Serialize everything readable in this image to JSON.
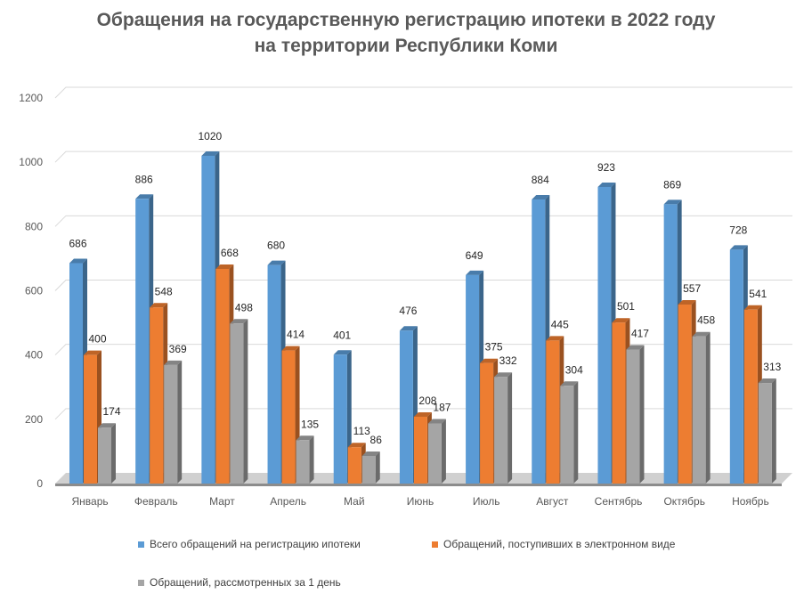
{
  "title": {
    "line1": "Обращения на государственную регистрацию ипотеки в 2022 году",
    "line2": "на территории Республики Коми"
  },
  "chart_data": {
    "type": "bar",
    "title": "Обращения на государственную регистрацию ипотеки в 2022 году на территории Республики Коми",
    "categories": [
      "Январь",
      "Февраль",
      "Март",
      "Апрель",
      "Май",
      "Июнь",
      "Июль",
      "Август",
      "Сентябрь",
      "Октябрь",
      "Ноябрь"
    ],
    "series": [
      {
        "name": "Всего обращений на регистрацию ипотеки",
        "color": "#5B9BD5",
        "values": [
          686,
          886,
          1020,
          680,
          401,
          476,
          649,
          884,
          923,
          869,
          728
        ]
      },
      {
        "name": "Обращений, поступивших в электронном виде",
        "color": "#ED7D31",
        "values": [
          400,
          548,
          668,
          414,
          113,
          208,
          375,
          445,
          501,
          557,
          541
        ]
      },
      {
        "name": "Обращений, рассмотренных за 1 день",
        "color": "#A5A5A5",
        "values": [
          174,
          369,
          498,
          135,
          86,
          187,
          332,
          304,
          417,
          458,
          313
        ]
      }
    ],
    "yticks": [
      "0",
      "200",
      "400",
      "600",
      "800",
      "1000",
      "1200"
    ],
    "ylim": [
      0,
      1200
    ],
    "grid": true,
    "data_labels": true,
    "legend_position": "bottom"
  }
}
